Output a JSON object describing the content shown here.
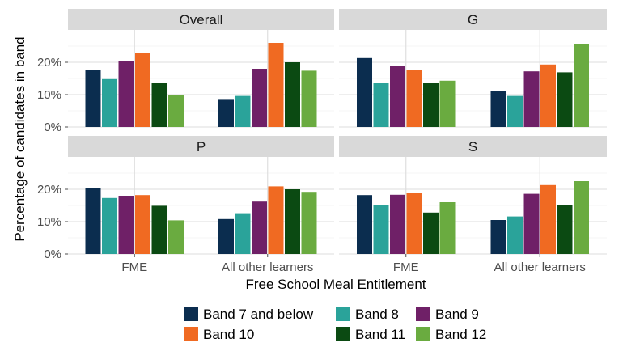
{
  "chart_data": {
    "type": "bar",
    "xlabel": "Free School Meal Entitlement",
    "ylabel": "Percentage of candidates in band",
    "categories": [
      "FME",
      "All other learners"
    ],
    "ylim": [
      0,
      30
    ],
    "yticks": [
      0,
      10,
      20
    ],
    "ytick_labels": [
      "0%",
      "10%",
      "20%"
    ],
    "grid": true,
    "legend_position": "bottom",
    "series": [
      {
        "name": "Band 7 and below",
        "color": "#0b2d4f"
      },
      {
        "name": "Band 8",
        "color": "#2aa39a"
      },
      {
        "name": "Band 9",
        "color": "#6f2067"
      },
      {
        "name": "Band 10",
        "color": "#f06a22"
      },
      {
        "name": "Band 11",
        "color": "#0b4a12"
      },
      {
        "name": "Band 12",
        "color": "#6aab40"
      }
    ],
    "panels": [
      {
        "title": "Overall",
        "values": {
          "FME": [
            17.5,
            14.8,
            20.3,
            22.9,
            13.7,
            10.0
          ],
          "All other learners": [
            8.4,
            9.6,
            18.0,
            26.0,
            20.0,
            17.4
          ]
        }
      },
      {
        "title": "G",
        "values": {
          "FME": [
            21.3,
            13.6,
            19.0,
            17.5,
            13.6,
            14.3
          ],
          "All other learners": [
            11.0,
            9.6,
            17.2,
            19.3,
            16.9,
            25.5
          ]
        }
      },
      {
        "title": "P",
        "values": {
          "FME": [
            20.4,
            17.3,
            18.0,
            18.2,
            14.9,
            10.4
          ],
          "All other learners": [
            10.8,
            12.6,
            16.2,
            20.9,
            20.0,
            19.2
          ]
        }
      },
      {
        "title": "S",
        "values": {
          "FME": [
            18.2,
            15.0,
            18.3,
            19.0,
            12.8,
            16.0
          ],
          "All other learners": [
            10.5,
            11.6,
            18.6,
            21.3,
            15.2,
            22.5
          ]
        }
      }
    ]
  }
}
